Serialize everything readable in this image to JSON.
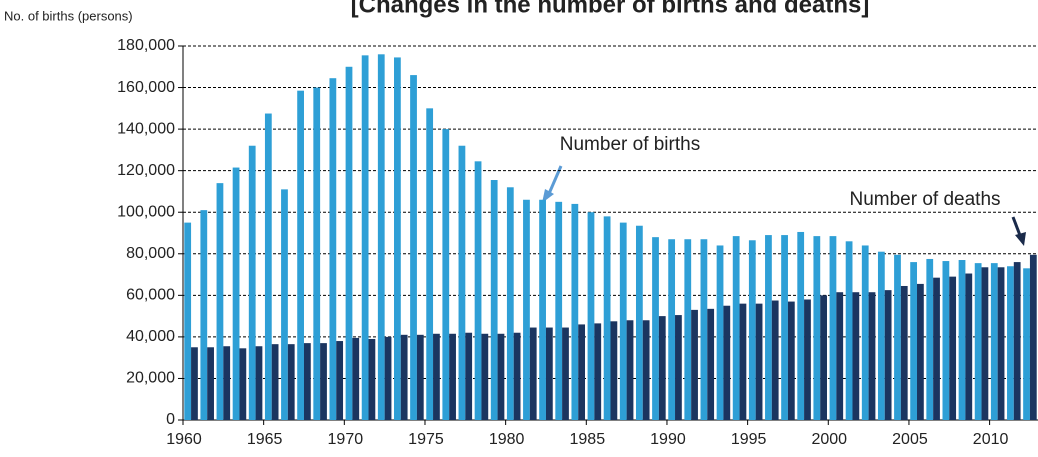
{
  "chart_data": {
    "type": "bar",
    "title": "[Changes in the number of births and deaths]",
    "y_label": "No. of births (persons)",
    "annotations": [
      "Number of births",
      "Number of deaths"
    ],
    "categories": [
      "1960",
      null,
      null,
      null,
      null,
      "1965",
      null,
      null,
      null,
      null,
      "1970",
      null,
      null,
      null,
      null,
      "1975",
      null,
      null,
      null,
      null,
      "1980",
      null,
      null,
      null,
      null,
      "1985",
      null,
      null,
      null,
      null,
      "1990",
      null,
      null,
      null,
      null,
      "1995",
      null,
      null,
      null,
      null,
      "2000",
      null,
      null,
      null,
      null,
      "2005",
      null,
      null,
      null,
      null,
      "2010",
      null,
      null
    ],
    "series": [
      {
        "name": "Number of births",
        "color": "#2e9fd6",
        "values": [
          95000,
          101000,
          114000,
          121500,
          132000,
          147500,
          111000,
          158500,
          160000,
          164500,
          170000,
          175500,
          176000,
          174500,
          166000,
          150000,
          140000,
          132000,
          124500,
          115500,
          112000,
          106000,
          106000,
          105000,
          104000,
          100000,
          98000,
          95000,
          93500,
          88000,
          87000,
          87000,
          87000,
          84000,
          88500,
          86500,
          89000,
          89000,
          90500,
          88500,
          88500,
          86000,
          84000,
          81000,
          79500,
          76000,
          77500,
          76500,
          77000,
          75500,
          75500,
          74000,
          73000
        ]
      },
      {
        "name": "Number of deaths",
        "color": "#1b3560",
        "values": [
          35000,
          35000,
          35500,
          34500,
          35500,
          36500,
          36500,
          37000,
          37000,
          38000,
          39500,
          39000,
          40000,
          41000,
          41000,
          41500,
          41500,
          42000,
          41500,
          41500,
          42000,
          44500,
          44500,
          44500,
          46000,
          46500,
          47500,
          48000,
          48000,
          50000,
          50500,
          53000,
          53500,
          55000,
          56000,
          56000,
          57500,
          57000,
          58000,
          60000,
          61500,
          61500,
          61500,
          62500,
          64500,
          65500,
          68500,
          69000,
          70500,
          73500,
          73500,
          76000,
          79500
        ]
      }
    ],
    "ylim": [
      0,
      180000
    ],
    "yticks": [
      0,
      {
        "value": 20000,
        "label": "20,000"
      },
      {
        "value": 40000,
        "label": "40,000"
      },
      {
        "value": 60000,
        "label": "60,000"
      },
      {
        "value": 80000,
        "label": "80,000"
      },
      {
        "value": 100000,
        "label": "100,000"
      },
      {
        "value": 120000,
        "label": "120,000"
      },
      {
        "value": 140000,
        "label": "140,000"
      },
      {
        "value": 160000,
        "label": "160,000"
      },
      {
        "value": 180000,
        "label": "180,000"
      }
    ],
    "grid": true
  }
}
